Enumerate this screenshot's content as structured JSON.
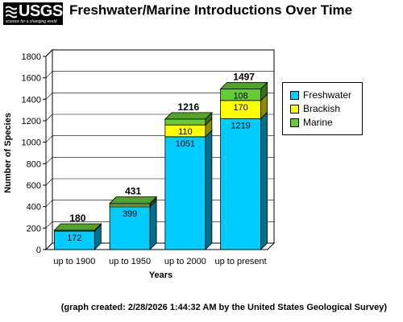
{
  "logo": {
    "text": "USGS",
    "tagline": "science for a changing world",
    "icon": "usgs-wave-icon"
  },
  "header": {
    "title": "Freshwater/Marine Introductions Over Time"
  },
  "footer": {
    "note": "(graph created: 2/28/2026 1:44:32 AM by the United States Geological Survey)"
  },
  "colors": {
    "freshwater": "#00ccff",
    "brackish": "#ffff00",
    "marine": "#66cc33"
  },
  "chart_data": {
    "type": "bar",
    "stacked": true,
    "three_d": true,
    "title": "Freshwater/Marine Introductions Over Time",
    "xlabel": "Years",
    "ylabel": "Number of Species",
    "ylim": [
      0,
      1800
    ],
    "yticks": [
      0,
      200,
      400,
      600,
      800,
      1000,
      1200,
      1400,
      1600,
      1800
    ],
    "grid": true,
    "legend_position": "right",
    "categories": [
      "up to 1900",
      "up to 1950",
      "up to 2000",
      "up to present"
    ],
    "series": [
      {
        "name": "Freshwater",
        "values": [
          172,
          399,
          1051,
          1219
        ],
        "color": "#00ccff"
      },
      {
        "name": "Brackish",
        "values": [
          0,
          15,
          110,
          170
        ],
        "color": "#ffff00"
      },
      {
        "name": "Marine",
        "values": [
          8,
          17,
          55,
          108
        ],
        "color": "#66cc33"
      }
    ],
    "segment_labels": [
      [
        "172",
        "",
        ""
      ],
      [
        "399",
        "",
        ""
      ],
      [
        "1051",
        "110",
        ""
      ],
      [
        "1219",
        "170",
        "108"
      ]
    ],
    "totals": [
      180,
      431,
      1216,
      1497
    ]
  }
}
